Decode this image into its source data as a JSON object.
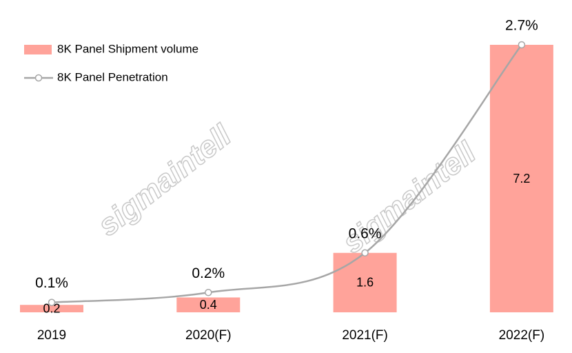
{
  "chart_data": {
    "type": "bar-line",
    "watermark": "sigmaintell",
    "categories": [
      "2019",
      "2020(F)",
      "2021(F)",
      "2022(F)"
    ],
    "ylim": [
      0,
      7.2
    ],
    "y2lim": [
      0,
      2.7
    ],
    "legend": "top-left",
    "series": [
      {
        "name": "8K Panel Shipment volume",
        "type": "bar",
        "color": "#ffa39a",
        "values": [
          0.2,
          0.4,
          1.6,
          7.2
        ]
      },
      {
        "name": "8K Panel Penetration",
        "type": "line",
        "axis": "y2",
        "color": "#a6a6a6",
        "values": [
          0.1,
          0.2,
          0.6,
          2.7
        ],
        "value_labels": [
          "0.1%",
          "0.2%",
          "0.6%",
          "2.7%"
        ]
      }
    ]
  }
}
